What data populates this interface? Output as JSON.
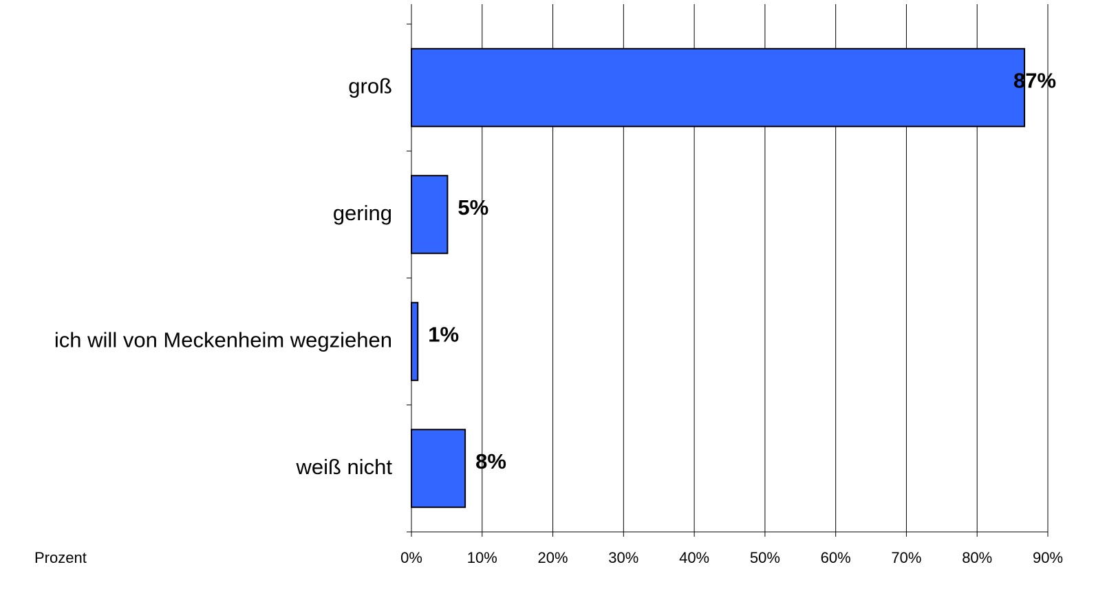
{
  "chart_data": {
    "type": "bar",
    "orientation": "horizontal",
    "categories": [
      "groß",
      "gering",
      "ich will von Meckenheim wegziehen",
      "weiß nicht"
    ],
    "values": [
      86.7,
      5.1,
      0.9,
      7.6
    ],
    "value_labels": [
      "87%",
      "5%",
      "1%",
      "8%"
    ],
    "color": "#3366ff",
    "x_label": "Prozent",
    "xlim": [
      0,
      90
    ],
    "xticks": [
      {
        "value": 0,
        "label": "0%"
      },
      {
        "value": 10,
        "label": "10%"
      },
      {
        "value": 20,
        "label": "20%"
      },
      {
        "value": 30,
        "label": "30%"
      },
      {
        "value": 40,
        "label": "40%"
      },
      {
        "value": 50,
        "label": "50%"
      },
      {
        "value": 60,
        "label": "60%"
      },
      {
        "value": 70,
        "label": "70%"
      },
      {
        "value": 80,
        "label": "80%"
      },
      {
        "value": 90,
        "label": "90%"
      }
    ],
    "grid": true
  }
}
